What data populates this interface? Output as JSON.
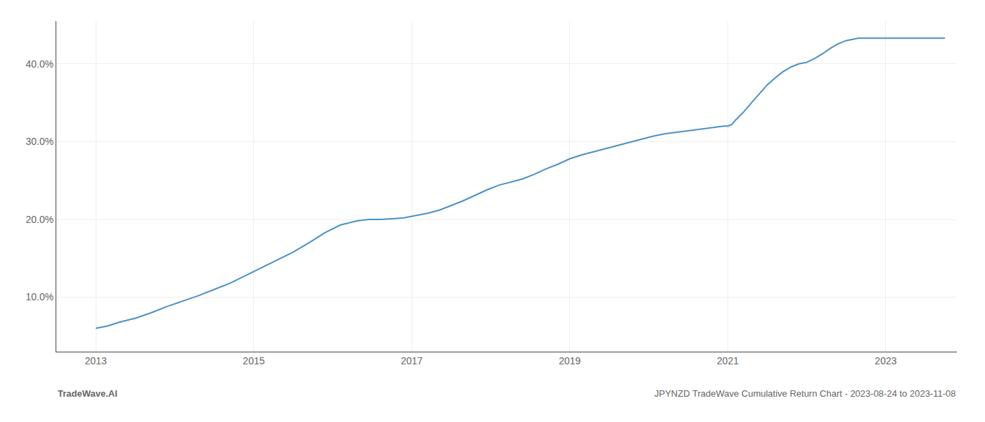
{
  "chart_data": {
    "type": "line",
    "annotations": [
      "TradeWave.AI",
      "JPYNZD TradeWave Cumulative Return Chart - 2023-08-24 to 2023-11-08"
    ],
    "color": "#4a90c4",
    "grid": true,
    "xlim": [
      2012.5,
      2023.9
    ],
    "xticks": [
      2013,
      2015,
      2017,
      2019,
      2021,
      2023
    ],
    "ylim": [
      0.03,
      0.455
    ],
    "yticks": [
      {
        "value": 0.1,
        "label": "10.0%"
      },
      {
        "value": 0.2,
        "label": "20.0%"
      },
      {
        "value": 0.3,
        "label": "30.0%"
      },
      {
        "value": 0.4,
        "label": "40.0%"
      }
    ],
    "x": [
      2013.0,
      2013.15,
      2013.3,
      2013.5,
      2013.7,
      2013.9,
      2014.1,
      2014.3,
      2014.5,
      2014.7,
      2014.9,
      2015.1,
      2015.3,
      2015.5,
      2015.7,
      2015.9,
      2016.1,
      2016.3,
      2016.45,
      2016.6,
      2016.75,
      2016.9,
      2017.0,
      2017.1,
      2017.2,
      2017.35,
      2017.5,
      2017.65,
      2017.8,
      2017.95,
      2018.1,
      2018.25,
      2018.4,
      2018.55,
      2018.7,
      2018.85,
      2019.0,
      2019.15,
      2019.3,
      2019.45,
      2019.6,
      2019.75,
      2019.9,
      2020.05,
      2020.2,
      2020.35,
      2020.5,
      2020.65,
      2020.75,
      2020.85,
      2020.95,
      2021.0,
      2021.05,
      2021.1,
      2021.2,
      2021.3,
      2021.4,
      2021.5,
      2021.6,
      2021.7,
      2021.8,
      2021.9,
      2022.0,
      2022.1,
      2022.2,
      2022.3,
      2022.4,
      2022.5,
      2022.6,
      2022.65,
      2022.7,
      2022.8,
      2023.0,
      2023.2,
      2023.4,
      2023.6,
      2023.75
    ],
    "values": [
      0.06,
      0.063,
      0.068,
      0.073,
      0.08,
      0.088,
      0.095,
      0.102,
      0.11,
      0.118,
      0.128,
      0.138,
      0.148,
      0.158,
      0.17,
      0.183,
      0.193,
      0.198,
      0.2,
      0.2,
      0.201,
      0.202,
      0.204,
      0.206,
      0.208,
      0.212,
      0.218,
      0.224,
      0.231,
      0.238,
      0.244,
      0.248,
      0.252,
      0.258,
      0.265,
      0.271,
      0.278,
      0.283,
      0.287,
      0.291,
      0.295,
      0.299,
      0.303,
      0.307,
      0.31,
      0.312,
      0.314,
      0.316,
      0.318,
      0.319,
      0.32,
      0.32,
      0.322,
      0.328,
      0.338,
      0.35,
      0.362,
      0.373,
      0.382,
      0.39,
      0.396,
      0.4,
      0.402,
      0.407,
      0.413,
      0.42,
      0.426,
      0.43,
      0.432,
      0.433,
      0.433,
      0.433,
      0.433,
      0.433,
      0.433,
      0.433,
      0.433
    ]
  }
}
